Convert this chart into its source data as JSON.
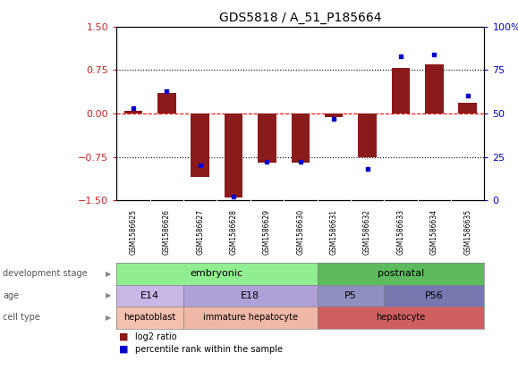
{
  "title": "GDS5818 / A_51_P185664",
  "samples": [
    "GSM1586625",
    "GSM1586626",
    "GSM1586627",
    "GSM1586628",
    "GSM1586629",
    "GSM1586630",
    "GSM1586631",
    "GSM1586632",
    "GSM1586633",
    "GSM1586634",
    "GSM1586635"
  ],
  "log2_ratio": [
    0.05,
    0.35,
    -1.1,
    -1.45,
    -0.85,
    -0.85,
    -0.07,
    -0.75,
    0.78,
    0.85,
    0.18
  ],
  "percentile_rank": [
    53,
    63,
    20,
    2,
    22,
    22,
    47,
    18,
    83,
    84,
    60
  ],
  "ylim_left": [
    -1.5,
    1.5
  ],
  "ylim_right": [
    0,
    100
  ],
  "yticks_left": [
    -1.5,
    -0.75,
    0,
    0.75,
    1.5
  ],
  "yticks_right": [
    0,
    25,
    50,
    75,
    100
  ],
  "bar_color": "#8B1A1A",
  "dot_color": "#0000CD",
  "development_stage_groups": [
    {
      "label": "embryonic",
      "start": 0,
      "end": 5,
      "color": "#90EE90"
    },
    {
      "label": "postnatal",
      "start": 6,
      "end": 10,
      "color": "#5DBB5D"
    }
  ],
  "age_groups": [
    {
      "label": "E14",
      "start": 0,
      "end": 1,
      "color": "#C8B8E8"
    },
    {
      "label": "E18",
      "start": 2,
      "end": 5,
      "color": "#B0A0D8"
    },
    {
      "label": "P5",
      "start": 6,
      "end": 7,
      "color": "#9090C0"
    },
    {
      "label": "P56",
      "start": 8,
      "end": 10,
      "color": "#7878B0"
    }
  ],
  "cell_type_groups": [
    {
      "label": "hepatoblast",
      "start": 0,
      "end": 1,
      "color": "#F4C0B0"
    },
    {
      "label": "immature hepatocyte",
      "start": 2,
      "end": 5,
      "color": "#F0B8A8"
    },
    {
      "label": "hepatocyte",
      "start": 6,
      "end": 10,
      "color": "#D06060"
    }
  ],
  "legend_items": [
    {
      "label": "log2 ratio",
      "color": "#8B1A1A"
    },
    {
      "label": "percentile rank within the sample",
      "color": "#0000CD"
    }
  ],
  "bg_color": "#FFFFFF",
  "axis_color_left": "#CC2222",
  "axis_color_right": "#0000CC"
}
